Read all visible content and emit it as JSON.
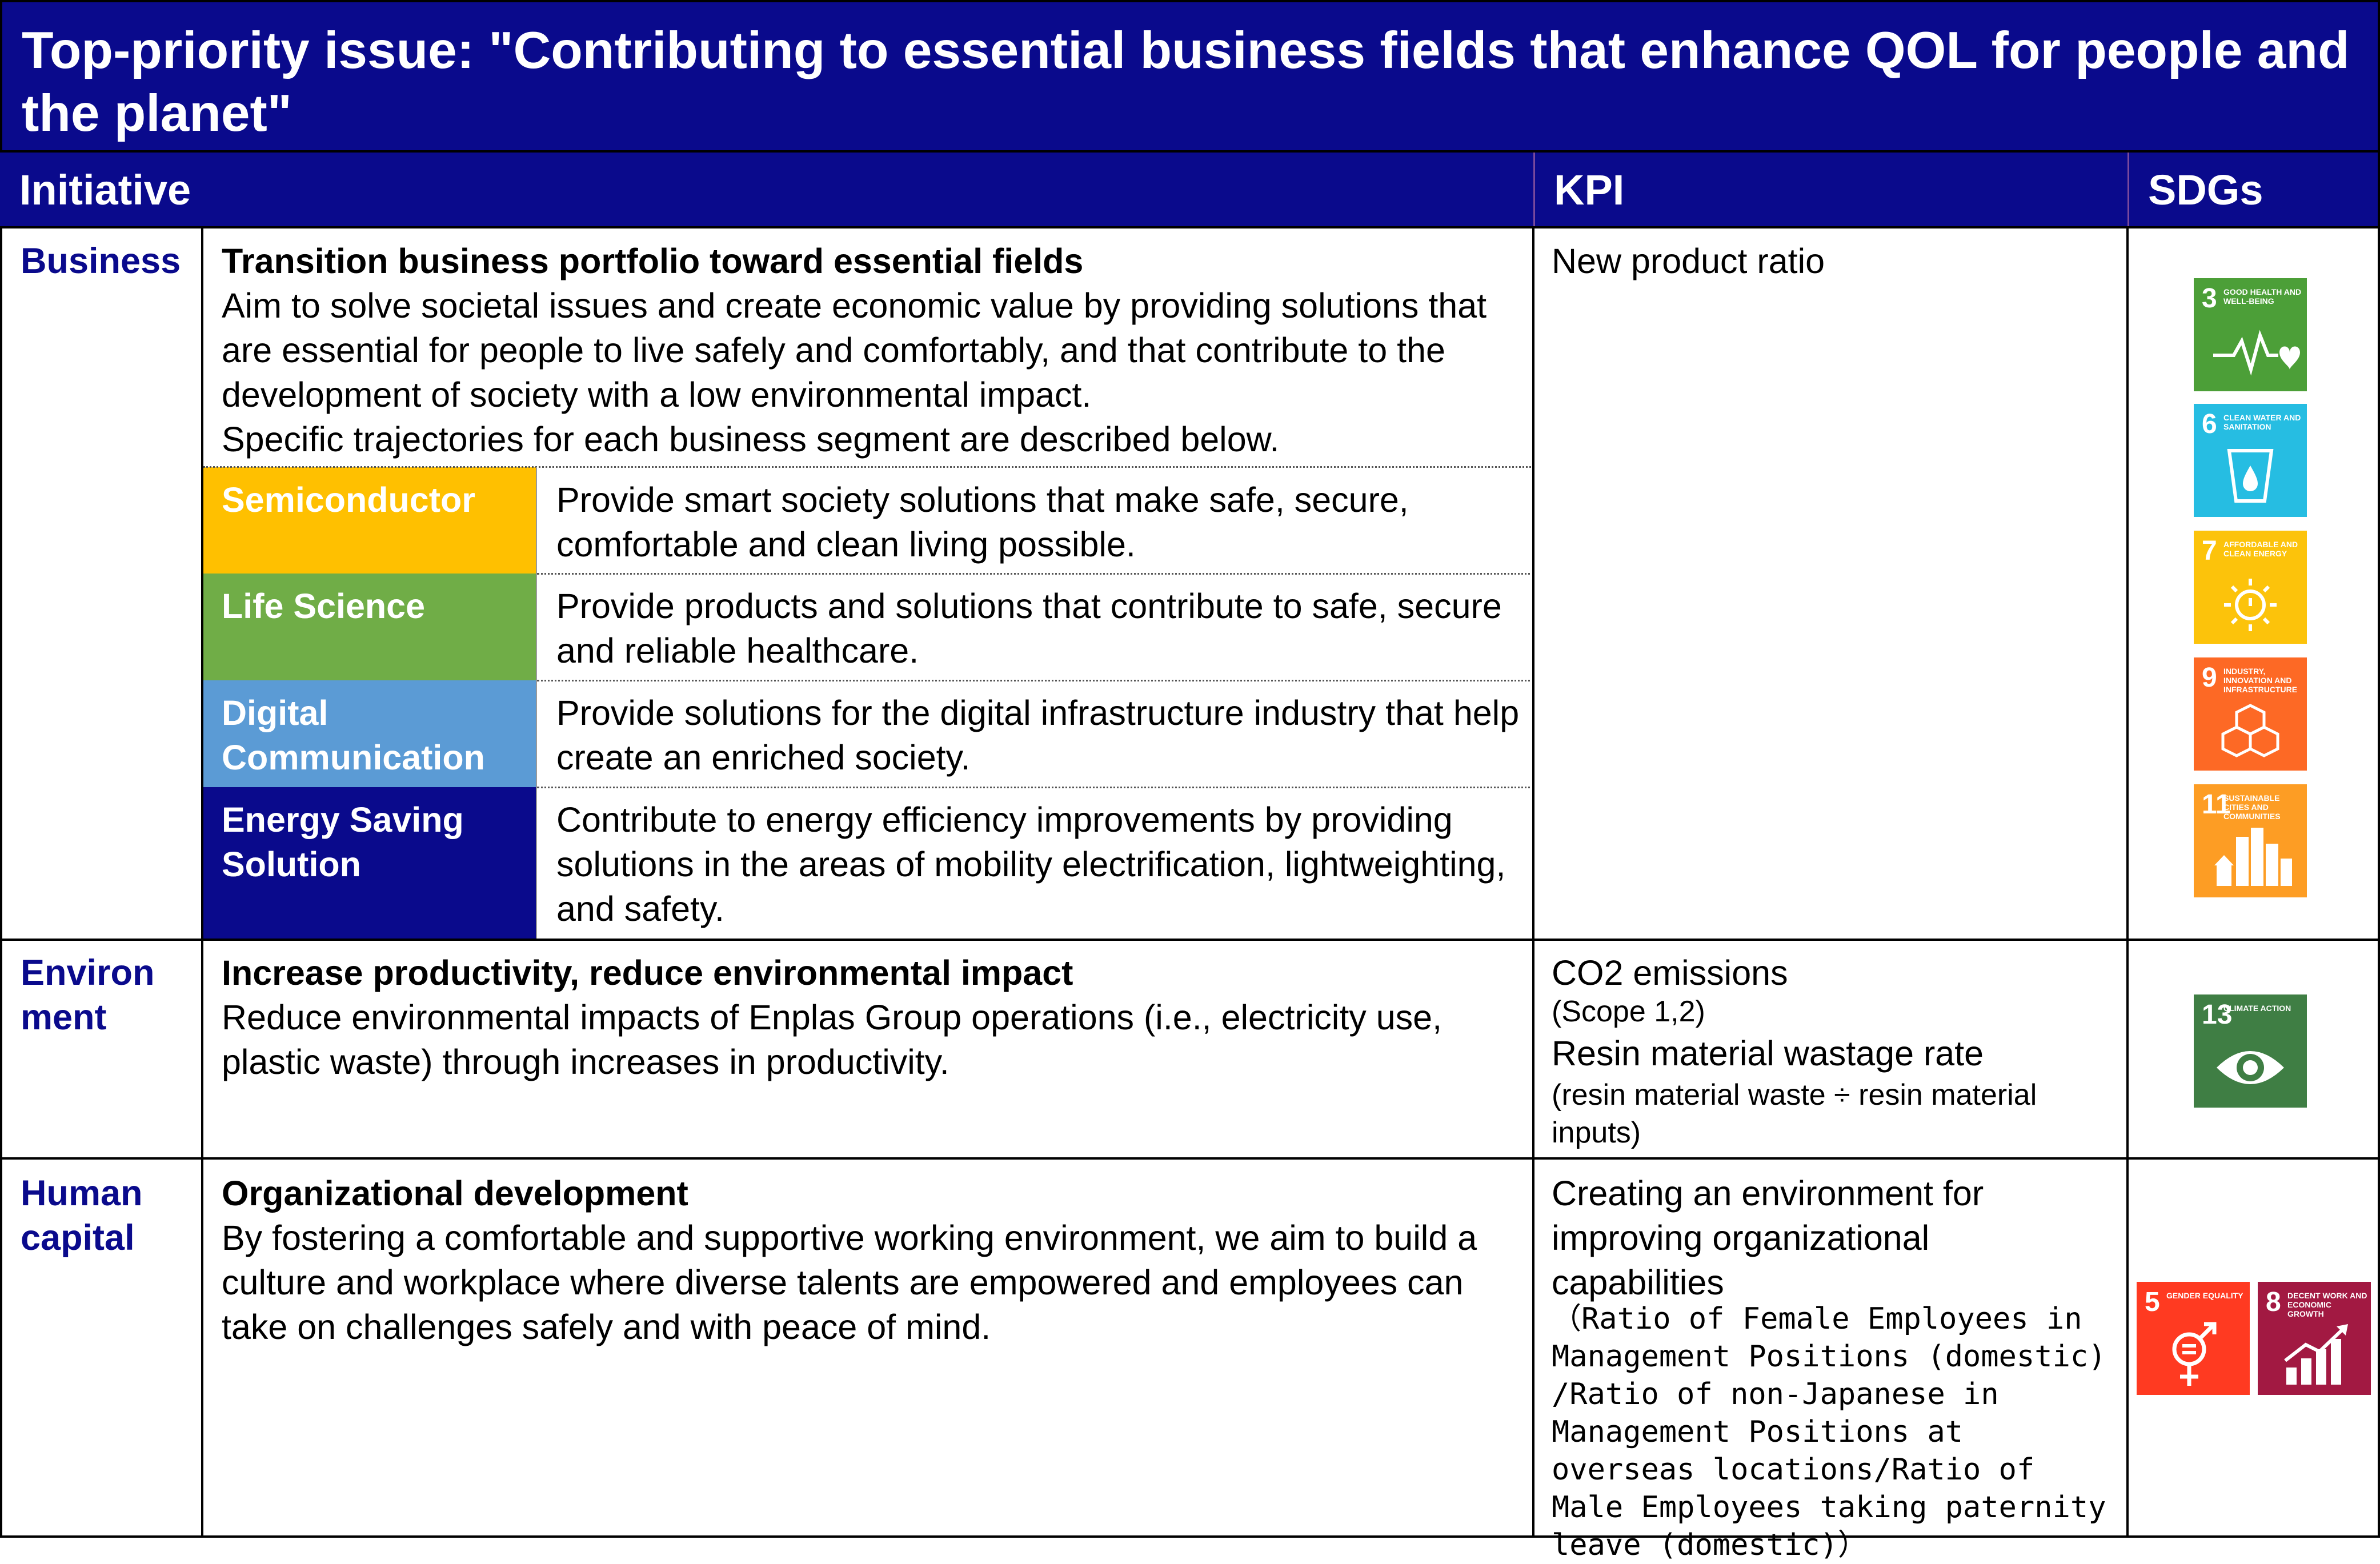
{
  "title": "Top-priority issue: \"Contributing to essential business fields that enhance QOL for people and the planet\"",
  "headers": {
    "initiative": "Initiative",
    "kpi": "KPI",
    "sdgs": "SDGs"
  },
  "rows": {
    "business": {
      "label": "Business",
      "heading": "Transition business portfolio toward essential fields",
      "body": "Aim to solve societal issues and create economic value by providing solutions that are essential for people to live safely and comfortably, and that contribute to the development of society with a low environmental impact.",
      "body2": "Specific trajectories for each business segment are described below.",
      "segments": [
        {
          "name": "Semiconductor",
          "color": "#ffc000",
          "text": "Provide smart society solutions that make safe, secure, comfortable and clean living possible."
        },
        {
          "name": "Life Science",
          "color": "#70ad47",
          "text": "Provide products and solutions that contribute to safe, secure and reliable healthcare."
        },
        {
          "name": "Digital Communication",
          "color": "#5b9bd5",
          "text": "Provide solutions for the digital infrastructure industry that help create an enriched society."
        },
        {
          "name": "Energy Saving Solution",
          "color": "#0a0a8c",
          "text": "Contribute to energy efficiency improvements by providing solutions in the areas of mobility electrification, lightweighting, and safety."
        }
      ],
      "kpi": "New product ratio",
      "sdgs": [
        {
          "num": "3",
          "label": "Good health and well-being",
          "color": "#4c9f38",
          "icon": "heartbeat-icon"
        },
        {
          "num": "6",
          "label": "Clean water and sanitation",
          "color": "#26bde2",
          "icon": "water-drop-icon"
        },
        {
          "num": "7",
          "label": "Affordable and clean energy",
          "color": "#fcc30b",
          "icon": "sun-power-icon"
        },
        {
          "num": "9",
          "label": "Industry, innovation and infrastructure",
          "color": "#fd6925",
          "icon": "cubes-icon"
        },
        {
          "num": "11",
          "label": "Sustainable cities and communities",
          "color": "#fd9d24",
          "icon": "city-icon"
        }
      ]
    },
    "environment": {
      "label": "Environ ment",
      "heading": "Increase productivity, reduce environmental impact",
      "body": "Reduce environmental impacts of Enplas Group operations (i.e., electricity use, plastic waste) through increases in productivity.",
      "kpi_1": "CO2 emissions",
      "kpi_1_note": "(Scope 1,2)",
      "kpi_2": "Resin material wastage rate",
      "kpi_2_note": "(resin material waste ÷ resin material inputs)",
      "sdgs": [
        {
          "num": "13",
          "label": "Climate action",
          "color": "#3f7e44",
          "icon": "eye-globe-icon"
        }
      ]
    },
    "human_capital": {
      "label": "Human capital",
      "heading": "Organizational development",
      "body": "By fostering a comfortable and supportive working environment, we aim to build a culture and workplace where diverse talents are empowered and employees can take on challenges safely and with peace of mind.",
      "kpi": "Creating an environment for improving organizational capabilities",
      "kpi_note": "（Ratio of Female Employees in Management Positions (domestic) /Ratio of non-Japanese in Management Positions at overseas locations/Ratio of Male Employees taking paternity leave (domestic)）",
      "sdgs": [
        {
          "num": "5",
          "label": "Gender equality",
          "color": "#ff3a21",
          "icon": "gender-icon"
        },
        {
          "num": "8",
          "label": "Decent work and economic growth",
          "color": "#a21942",
          "icon": "growth-chart-icon"
        }
      ]
    }
  }
}
